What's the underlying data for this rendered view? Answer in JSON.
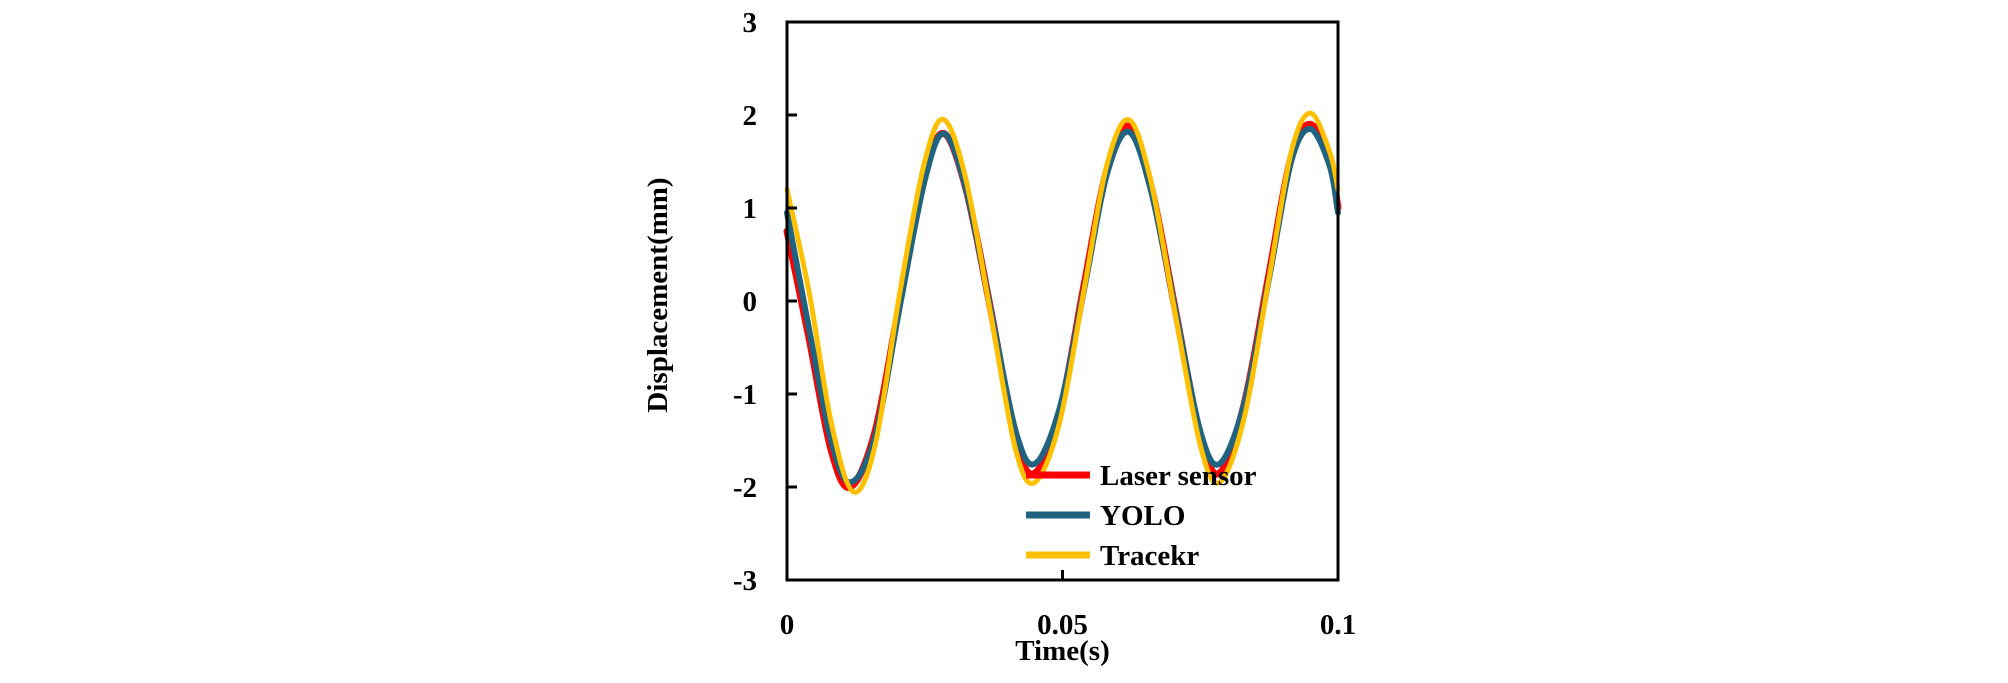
{
  "chart_data": {
    "type": "line",
    "xlabel": "Time(s)",
    "ylabel": "Displacement(mm)",
    "xlim": [
      0,
      0.1
    ],
    "ylim": [
      -3,
      3
    ],
    "x_ticks": [
      0,
      0.05,
      0.1
    ],
    "x_tick_labels": [
      "0",
      "0.05",
      "0.1"
    ],
    "y_ticks": [
      3,
      2,
      1,
      0,
      -1,
      -2,
      -3
    ],
    "y_tick_labels": [
      "3",
      "2",
      "1",
      "0",
      "-1",
      "-2",
      "-3"
    ],
    "grid": false,
    "legend_position": "bottom-right",
    "series": [
      {
        "name": "Laser sensor",
        "color": "#ff0000",
        "x": [
          0,
          0.004,
          0.008,
          0.0115,
          0.016,
          0.0205,
          0.025,
          0.0285,
          0.0325,
          0.037,
          0.0415,
          0.045,
          0.0495,
          0.054,
          0.058,
          0.062,
          0.066,
          0.0705,
          0.075,
          0.0785,
          0.083,
          0.0875,
          0.0915,
          0.095,
          0.0985,
          0.1
        ],
        "y": [
          0.75,
          -0.4,
          -1.6,
          -2.0,
          -1.4,
          0.0,
          1.35,
          1.8,
          1.2,
          -0.1,
          -1.5,
          -1.85,
          -1.2,
          0.2,
          1.4,
          1.88,
          1.25,
          -0.1,
          -1.45,
          -1.85,
          -1.1,
          0.3,
          1.55,
          1.9,
          1.5,
          1.0
        ]
      },
      {
        "name": "YOLO",
        "color": "#1f6380",
        "x": [
          0,
          0.004,
          0.008,
          0.0115,
          0.016,
          0.0205,
          0.025,
          0.0285,
          0.0325,
          0.037,
          0.0415,
          0.045,
          0.0495,
          0.054,
          0.058,
          0.062,
          0.066,
          0.0705,
          0.075,
          0.0785,
          0.083,
          0.0875,
          0.0915,
          0.095,
          0.0985,
          0.1
        ],
        "y": [
          0.95,
          -0.3,
          -1.5,
          -1.95,
          -1.45,
          -0.05,
          1.3,
          1.8,
          1.2,
          -0.1,
          -1.4,
          -1.75,
          -1.15,
          0.15,
          1.35,
          1.82,
          1.2,
          -0.1,
          -1.4,
          -1.75,
          -1.1,
          0.25,
          1.5,
          1.85,
          1.45,
          0.95
        ]
      },
      {
        "name": "Tracekr",
        "color": "#ffc000",
        "x": [
          0,
          0.004,
          0.008,
          0.012,
          0.016,
          0.0205,
          0.025,
          0.0285,
          0.0325,
          0.037,
          0.0415,
          0.045,
          0.0495,
          0.054,
          0.058,
          0.062,
          0.066,
          0.0705,
          0.075,
          0.0785,
          0.083,
          0.0875,
          0.0915,
          0.095,
          0.0985,
          0.1
        ],
        "y": [
          1.2,
          0.1,
          -1.3,
          -2.05,
          -1.55,
          0.1,
          1.5,
          1.95,
          1.3,
          -0.15,
          -1.6,
          -1.95,
          -1.3,
          0.15,
          1.45,
          1.95,
          1.3,
          -0.15,
          -1.55,
          -1.95,
          -1.25,
          0.25,
          1.6,
          2.02,
          1.6,
          1.2
        ]
      }
    ]
  }
}
